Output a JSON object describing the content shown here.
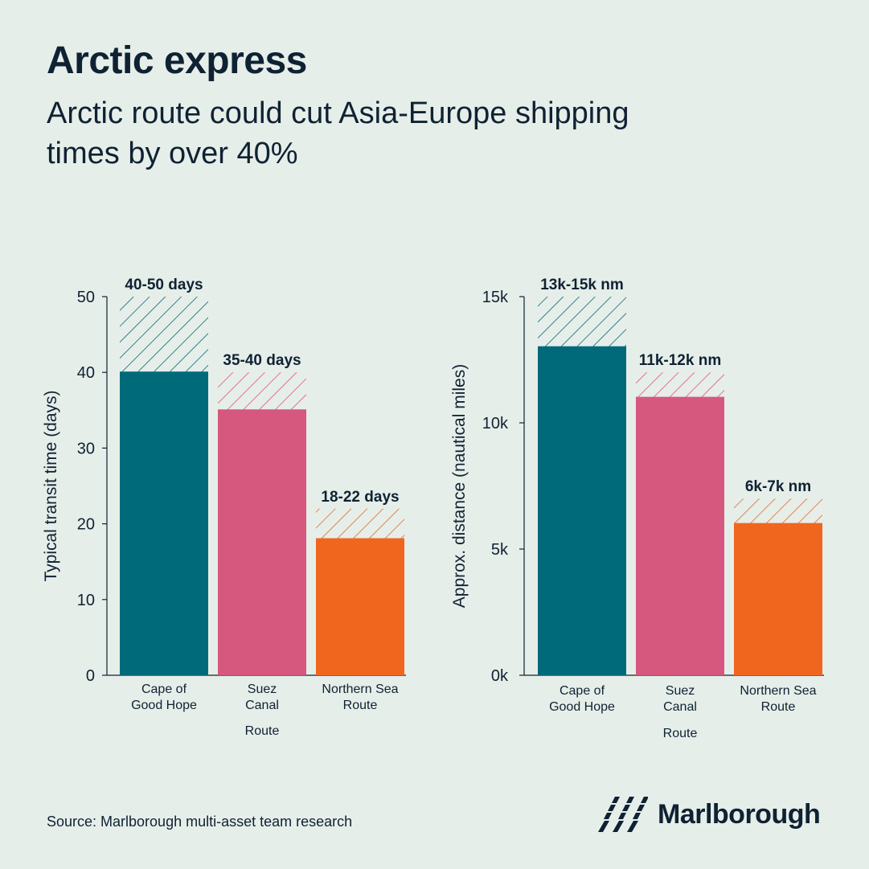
{
  "header": {
    "title": "Arctic express",
    "subtitle": "Arctic route could cut Asia-Europe shipping times by over 40%"
  },
  "colors": {
    "background": "#e6eee9",
    "teal": "#006a7a",
    "pink": "#d6587f",
    "orange": "#f0661e",
    "text": "#0f2233"
  },
  "chart_data": [
    {
      "type": "bar",
      "categories": [
        [
          "Cape of",
          "Good Hope"
        ],
        [
          "Suez",
          "Canal"
        ],
        [
          "Northern Sea",
          "Route"
        ]
      ],
      "series": [
        {
          "name": "",
          "values": [
            40,
            35,
            18
          ]
        },
        {
          "name": "",
          "values": [
            10,
            5,
            4
          ]
        }
      ],
      "stacked": true,
      "upper_portion_style": "hatched",
      "data_labels": [
        "40-50 days",
        "35-40 days",
        "18-22 days"
      ],
      "colors": [
        "#006a7a",
        "#d6587f",
        "#f0661e"
      ],
      "xlabel": "Route",
      "ylabel": "Typical transit time (days)",
      "ylim": [
        0,
        50
      ],
      "yticks": [
        0,
        10,
        20,
        30,
        40,
        50
      ],
      "ytick_labels": [
        "0",
        "10",
        "20",
        "30",
        "40",
        "50"
      ],
      "grid": false
    },
    {
      "type": "bar",
      "categories": [
        [
          "Cape of",
          "Good Hope"
        ],
        [
          "Suez",
          "Canal"
        ],
        [
          "Northern Sea",
          "Route"
        ]
      ],
      "series": [
        {
          "name": "",
          "values": [
            13000,
            11000,
            6000
          ]
        },
        {
          "name": "",
          "values": [
            2000,
            1000,
            1000
          ]
        }
      ],
      "stacked": true,
      "upper_portion_style": "hatched",
      "data_labels": [
        "13k-15k nm",
        "11k-12k nm",
        "6k-7k nm"
      ],
      "colors": [
        "#006a7a",
        "#d6587f",
        "#f0661e"
      ],
      "xlabel": "Route",
      "ylabel": "Approx. distance (nautical miles)",
      "ylim": [
        0,
        15000
      ],
      "yticks": [
        0,
        5000,
        10000,
        15000
      ],
      "ytick_labels": [
        "0k",
        "5k",
        "10k",
        "15k"
      ],
      "grid": false
    }
  ],
  "footer": {
    "source": "Source: Marlborough multi-asset team research",
    "brand": "Marlborough"
  }
}
